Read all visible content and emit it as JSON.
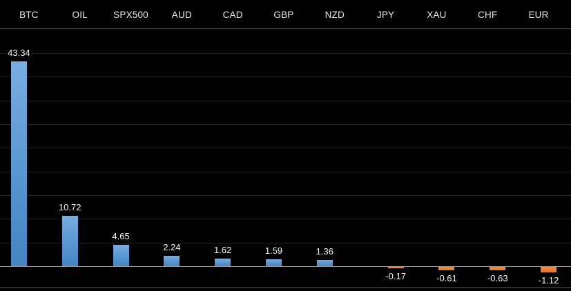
{
  "chart_data": {
    "type": "bar",
    "title": "",
    "categories": [
      "BTC",
      "OIL",
      "SPX500",
      "AUD",
      "CAD",
      "GBP",
      "NZD",
      "JPY",
      "XAU",
      "CHF",
      "EUR"
    ],
    "values": [
      43.34,
      10.72,
      4.65,
      2.24,
      1.62,
      1.59,
      1.36,
      -0.17,
      -0.61,
      -0.63,
      -1.12
    ],
    "value_labels": [
      "43.34",
      "10.72",
      "4.65",
      "2.24",
      "1.62",
      "1.59",
      "1.36",
      "-0.17",
      "-0.61",
      "-0.63",
      "-1.12"
    ],
    "xlabel": "",
    "ylabel": "",
    "ylim": [
      -4.3,
      50.0
    ],
    "gridline_step": 5,
    "grid": "horizontal-only",
    "legend": "none",
    "category_labels_position": "top",
    "colors": {
      "background": "#000000",
      "positive_bar": "#5b9bd5",
      "negative_bar": "#ed7d31",
      "gridline": "#252525",
      "zero_line": "#9b9b9b",
      "header_separator": "#484848",
      "bottom_border": "#4f4f4f",
      "header_text": "#e8e8e8",
      "value_text": "#f5f5f5"
    }
  }
}
